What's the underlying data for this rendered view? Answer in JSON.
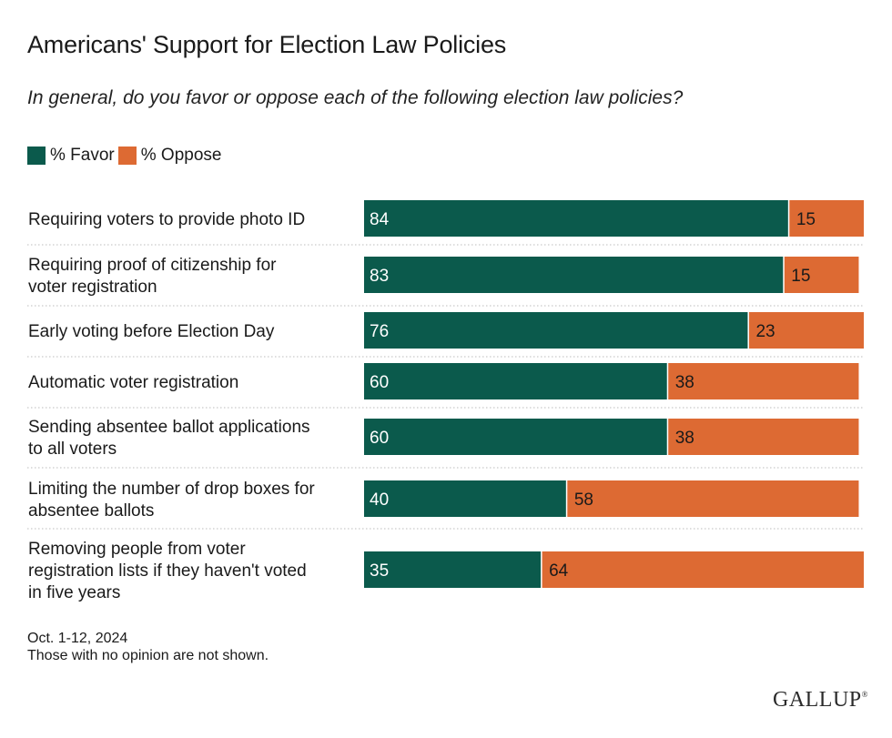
{
  "title": "Americans' Support for Election Law Policies",
  "subtitle": "In general, do you favor or oppose each of the following election law policies?",
  "legend": [
    {
      "label": "% Favor",
      "color": "#0b5a4c"
    },
    {
      "label": "% Oppose",
      "color": "#dd6a33"
    }
  ],
  "chart_data": {
    "type": "bar",
    "orientation": "horizontal",
    "stacked": true,
    "title": "Americans' Support for Election Law Policies",
    "categories": [
      "Requiring voters to provide photo ID",
      "Requiring proof of citizenship for voter registration",
      "Early voting before Election Day",
      "Automatic voter registration",
      "Sending absentee ballot applications to all voters",
      "Limiting the number of drop boxes for absentee ballots",
      "Removing people from voter registration lists if they haven't voted in five years"
    ],
    "category_lines": [
      [
        "Requiring voters to provide photo ID"
      ],
      [
        "Requiring proof of citizenship for",
        "voter registration"
      ],
      [
        "Early voting before Election Day"
      ],
      [
        "Automatic voter registration"
      ],
      [
        "Sending absentee ballot applications",
        "to all voters"
      ],
      [
        "Limiting the number of drop boxes for",
        "absentee ballots"
      ],
      [
        "Removing people from voter",
        "registration lists if they haven't voted",
        "in five years"
      ]
    ],
    "series": [
      {
        "name": "% Favor",
        "color": "#0b5a4c",
        "values": [
          84,
          83,
          76,
          60,
          60,
          40,
          35
        ]
      },
      {
        "name": "% Oppose",
        "color": "#dd6a33",
        "values": [
          15,
          15,
          23,
          38,
          38,
          58,
          64
        ]
      }
    ],
    "xlim": [
      0,
      99
    ]
  },
  "note": {
    "date": "Oct. 1-12, 2024",
    "footnote": "Those with no opinion are not shown."
  },
  "logo": {
    "text": "GALLUP",
    "mark": "®"
  }
}
